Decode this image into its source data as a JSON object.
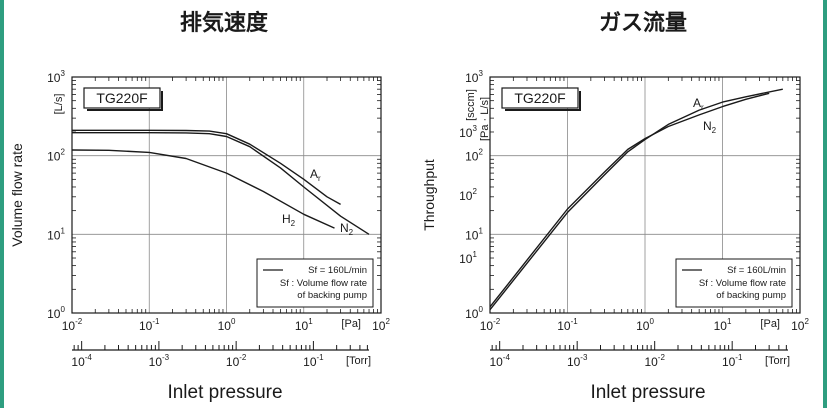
{
  "colors": {
    "frame": "#2e9e80",
    "line": "#1a1a1a",
    "grid": "#8a8a8a"
  },
  "chart_data": [
    {
      "type": "line",
      "title": "排気速度",
      "model_label": "TG220F",
      "xlabel": "Inlet pressure",
      "ylabel": "Volume flow rate",
      "y_unit": "[L/s]",
      "x_unit_primary": "[Pa]",
      "x_unit_secondary": "[Torr]",
      "x_scale": "log",
      "y_scale": "log",
      "xlim": [
        0.01,
        100
      ],
      "ylim": [
        1,
        1000
      ],
      "x_ticks": [
        "10-2",
        "10-1",
        "100",
        "101",
        "102"
      ],
      "y_ticks": [
        "100",
        "101",
        "102",
        "103"
      ],
      "x_ticks_secondary": [
        "10-4",
        "10-3",
        "10-2",
        "10-1"
      ],
      "grid": true,
      "legend_lines": [
        "Sf = 160L/min",
        "Sf : Volume flow rate",
        "of backing pump"
      ],
      "legend_placement": "bottom-right",
      "series": [
        {
          "name": "Ar",
          "label": "Ar",
          "x": [
            0.01,
            0.1,
            0.3,
            0.6,
            1,
            2,
            5,
            10,
            20,
            30
          ],
          "y": [
            210,
            210,
            209,
            205,
            190,
            140,
            80,
            50,
            30,
            24
          ]
        },
        {
          "name": "N2",
          "label": "N2",
          "x": [
            0.01,
            0.1,
            0.3,
            0.6,
            1,
            2,
            5,
            10,
            30,
            70
          ],
          "y": [
            196,
            196,
            195,
            190,
            175,
            130,
            70,
            40,
            17,
            10
          ]
        },
        {
          "name": "H2",
          "label": "H2",
          "x": [
            0.01,
            0.03,
            0.1,
            0.3,
            1,
            3,
            10,
            25
          ],
          "y": [
            118,
            117,
            110,
            92,
            60,
            35,
            18,
            12
          ]
        }
      ]
    },
    {
      "type": "line",
      "title": "ガス流量",
      "model_label": "TG220F",
      "xlabel": "Inlet pressure",
      "ylabel": "Throughput",
      "y_unit_primary": "[Pa · L/s]",
      "y_unit_secondary": "[sccm]",
      "x_unit_primary": "[Pa]",
      "x_unit_secondary": "[Torr]",
      "x_scale": "log",
      "y_scale": "log",
      "xlim": [
        0.01,
        100
      ],
      "ylim": [
        1,
        1000
      ],
      "x_ticks": [
        "10-2",
        "10-1",
        "100",
        "101",
        "102"
      ],
      "y_ticks": [
        "100",
        "101",
        "102",
        "103"
      ],
      "y_ticks_secondary": [
        "101",
        "102",
        "103"
      ],
      "x_ticks_secondary": [
        "10-4",
        "10-3",
        "10-2",
        "10-1"
      ],
      "grid": true,
      "legend_lines": [
        "Sf = 160L/min",
        "Sf : Volume flow rate",
        "of backing pump"
      ],
      "legend_placement": "bottom-right",
      "series": [
        {
          "name": "Ar",
          "label": "Ar",
          "x": [
            0.01,
            0.1,
            0.3,
            0.6,
            1,
            2,
            5,
            10,
            20,
            40
          ],
          "y": [
            1.2,
            21,
            62,
            120,
            165,
            235,
            330,
            420,
            520,
            620
          ]
        },
        {
          "name": "N2",
          "label": "N2",
          "x": [
            0.01,
            0.1,
            0.3,
            0.6,
            1,
            2,
            5,
            10,
            20,
            60
          ],
          "y": [
            1.1,
            19,
            57,
            112,
            160,
            250,
            380,
            480,
            560,
            700
          ]
        }
      ]
    }
  ]
}
